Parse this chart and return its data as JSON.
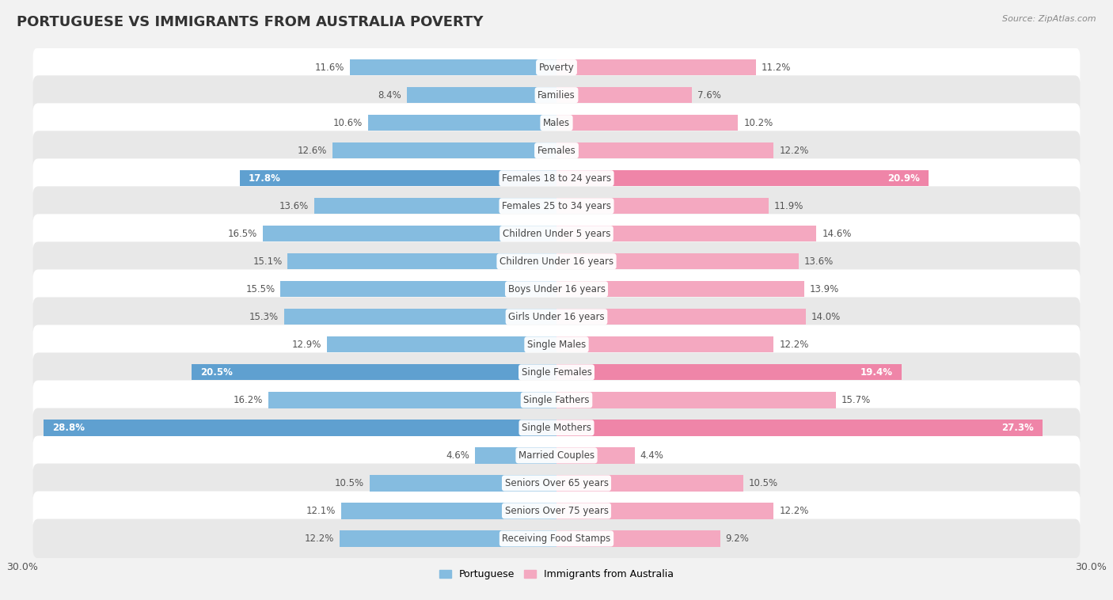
{
  "title": "PORTUGUESE VS IMMIGRANTS FROM AUSTRALIA POVERTY",
  "source": "Source: ZipAtlas.com",
  "categories": [
    "Poverty",
    "Families",
    "Males",
    "Females",
    "Females 18 to 24 years",
    "Females 25 to 34 years",
    "Children Under 5 years",
    "Children Under 16 years",
    "Boys Under 16 years",
    "Girls Under 16 years",
    "Single Males",
    "Single Females",
    "Single Fathers",
    "Single Mothers",
    "Married Couples",
    "Seniors Over 65 years",
    "Seniors Over 75 years",
    "Receiving Food Stamps"
  ],
  "portuguese": [
    11.6,
    8.4,
    10.6,
    12.6,
    17.8,
    13.6,
    16.5,
    15.1,
    15.5,
    15.3,
    12.9,
    20.5,
    16.2,
    28.8,
    4.6,
    10.5,
    12.1,
    12.2
  ],
  "australia": [
    11.2,
    7.6,
    10.2,
    12.2,
    20.9,
    11.9,
    14.6,
    13.6,
    13.9,
    14.0,
    12.2,
    19.4,
    15.7,
    27.3,
    4.4,
    10.5,
    12.2,
    9.2
  ],
  "portuguese_color": "#85bce0",
  "australia_color": "#f4a8c0",
  "portuguese_highlight_color": "#5fa0d0",
  "australia_highlight_color": "#ef85a8",
  "highlight_rows": [
    4,
    11,
    13
  ],
  "background_color": "#f2f2f2",
  "row_bg_light": "#ffffff",
  "row_bg_dark": "#e8e8e8",
  "axis_max": 30.0,
  "bar_height": 0.58,
  "title_fontsize": 13,
  "label_fontsize": 8.5,
  "value_fontsize": 8.5,
  "legend_fontsize": 9
}
